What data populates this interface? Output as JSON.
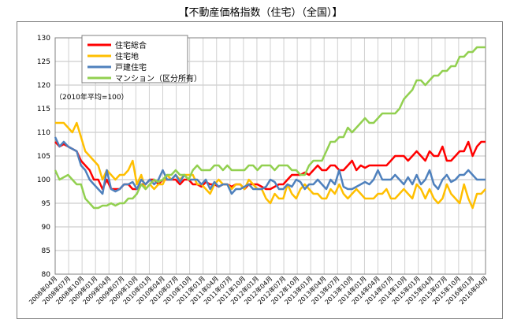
{
  "page": {
    "title": "【不動産価格指数（住宅）（全国）】"
  },
  "chart_data": {
    "type": "line",
    "title": "【不動産価格指数（住宅）（全国）】",
    "note": "（2010年平均=100）",
    "xlabel": "",
    "ylabel": "",
    "ylim": [
      80,
      130
    ],
    "yticks": [
      80,
      85,
      90,
      95,
      100,
      105,
      110,
      115,
      120,
      125,
      130
    ],
    "grid": true,
    "legend_position": "top-left",
    "x_tick_labels": [
      "2008年04月",
      "2008年07月",
      "2008年10月",
      "2009年01月",
      "2009年04月",
      "2009年07月",
      "2009年10月",
      "2010年01月",
      "2010年04月",
      "2010年07月",
      "2010年10月",
      "2011年01月",
      "2011年04月",
      "2011年07月",
      "2011年10月",
      "2012年01月",
      "2012年04月",
      "2012年07月",
      "2012年10月",
      "2013年01月",
      "2013年04月",
      "2013年07月",
      "2013年10月",
      "2014年01月",
      "2014年04月",
      "2014年07月",
      "2014年10月",
      "2015年01月",
      "2015年04月",
      "2015年07月",
      "2015年10月",
      "2016年01月",
      "2016年04月"
    ],
    "series": [
      {
        "name": "住宅総合",
        "color": "#ff0000",
        "values": [
          108,
          107,
          107.5,
          107,
          106.5,
          106,
          104,
          103,
          102,
          100,
          100,
          98,
          100,
          98,
          98,
          98,
          99,
          99,
          98,
          98,
          99,
          99,
          100,
          100,
          99,
          100,
          100,
          100,
          100,
          99,
          100,
          100,
          99,
          99,
          98.5,
          99.5,
          99,
          99,
          98.5,
          99,
          99,
          98.5,
          99,
          99,
          98,
          99,
          99,
          99,
          98.5,
          98,
          98,
          98.5,
          99,
          99,
          100,
          101,
          101,
          101,
          101.5,
          101,
          102,
          103,
          102,
          102,
          103,
          103,
          102,
          102,
          103,
          104,
          102,
          103,
          102.5,
          103,
          103,
          103,
          103,
          103,
          104,
          105,
          105,
          105,
          104,
          105,
          106,
          105,
          104,
          106,
          105,
          105,
          107,
          104,
          104,
          105,
          106,
          106,
          108,
          105,
          107,
          108,
          108
        ]
      },
      {
        "name": "住宅地",
        "color": "#ffbf00",
        "values": [
          112,
          112,
          112,
          111,
          110,
          112,
          109,
          106,
          105,
          104,
          103,
          100,
          102,
          101,
          100,
          101,
          101,
          102,
          104,
          99,
          101,
          98,
          99,
          98,
          99,
          99,
          101,
          100,
          101,
          100,
          101,
          101,
          101,
          99,
          99,
          98,
          97,
          99,
          100,
          99,
          99,
          98,
          99,
          99,
          98,
          100,
          99,
          98,
          98,
          96,
          95,
          97,
          96,
          96,
          99,
          97,
          96,
          98,
          99,
          98,
          97,
          97,
          96,
          96,
          98,
          97,
          99,
          97,
          96,
          97,
          98,
          97,
          96,
          96,
          96,
          97,
          97,
          98,
          96,
          96,
          97,
          98,
          97,
          96,
          99,
          98,
          96,
          98,
          96,
          95,
          96,
          99,
          97,
          96,
          95,
          99,
          96,
          94,
          97,
          97,
          98
        ]
      },
      {
        "name": "戸建住宅",
        "color": "#4f81bd",
        "values": [
          109,
          107,
          108,
          107,
          106.5,
          106,
          103,
          102,
          100,
          99,
          98,
          97,
          102,
          98,
          97.5,
          98,
          99,
          99,
          99.5,
          98,
          100,
          99,
          100,
          99,
          100,
          102,
          100,
          100,
          101,
          99.5,
          101,
          100,
          100,
          100,
          99,
          100,
          98,
          99.5,
          98.5,
          99,
          99,
          97,
          98,
          98,
          98.5,
          99,
          98,
          98,
          98,
          98.5,
          100,
          99.5,
          98,
          98,
          99,
          98.5,
          100,
          99.5,
          98,
          99,
          99,
          100,
          99,
          98,
          100,
          99,
          102,
          98.5,
          98,
          98,
          98.5,
          99,
          99.5,
          99,
          100,
          102,
          100,
          100,
          100,
          101,
          100,
          99,
          100.5,
          99,
          101,
          99,
          100,
          102,
          99,
          98,
          100,
          101,
          99.5,
          100,
          101,
          101,
          102,
          101,
          100,
          100,
          100
        ]
      },
      {
        "name": "マンション（区分所有）",
        "color": "#92d050",
        "values": [
          102,
          100,
          100.5,
          101,
          100,
          99,
          99,
          96,
          95,
          94,
          94,
          94.5,
          94.5,
          95,
          94.5,
          95,
          95,
          96,
          96,
          97,
          99,
          98,
          99,
          100,
          99.5,
          100,
          101,
          101,
          102,
          101,
          101,
          100,
          102,
          103,
          102,
          102,
          102,
          103,
          103,
          102,
          103,
          102,
          102,
          102,
          102,
          103,
          103,
          102,
          103,
          103,
          103,
          102,
          103,
          103,
          103,
          102,
          102,
          101,
          101,
          103,
          104,
          104,
          104,
          106,
          108,
          108,
          109,
          109,
          111,
          110,
          111,
          112,
          113,
          112,
          112,
          113,
          114,
          114,
          114,
          114,
          115,
          117,
          118,
          119,
          121,
          121,
          120,
          121,
          122,
          122,
          123,
          123,
          124,
          124,
          126,
          126,
          127,
          127,
          128,
          128,
          128
        ]
      }
    ]
  },
  "bottom_note": "…"
}
